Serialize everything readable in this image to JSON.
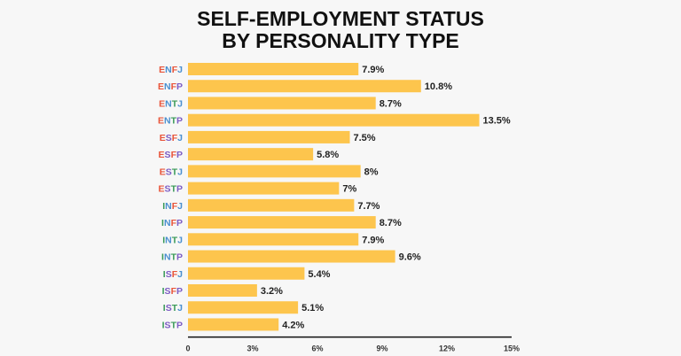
{
  "chart_data": {
    "type": "bar",
    "orientation": "horizontal",
    "title_lines": [
      "SELF-EMPLOYMENT STATUS",
      "BY PERSONALITY TYPE"
    ],
    "categories": [
      "ENFJ",
      "ENFP",
      "ENTJ",
      "ENTP",
      "ESFJ",
      "ESFP",
      "ESTJ",
      "ESTP",
      "INFJ",
      "INFP",
      "INTJ",
      "INTP",
      "ISFJ",
      "ISFP",
      "ISTJ",
      "ISTP"
    ],
    "values": [
      7.9,
      10.8,
      8.7,
      13.5,
      7.5,
      5.8,
      8,
      7,
      7.7,
      8.7,
      7.9,
      9.6,
      5.4,
      3.2,
      5.1,
      4.2
    ],
    "value_labels": [
      "7.9%",
      "10.8%",
      "8.7%",
      "13.5%",
      "7.5%",
      "5.8%",
      "8%",
      "7%",
      "7.7%",
      "8.7%",
      "7.9%",
      "9.6%",
      "5.4%",
      "3.2%",
      "5.1%",
      "4.2%"
    ],
    "xlim": [
      0,
      15
    ],
    "x_ticks": [
      0,
      3,
      6,
      9,
      12,
      15
    ],
    "x_tick_labels": [
      "0",
      "3%",
      "6%",
      "9%",
      "12%",
      "15%"
    ],
    "xlabel": "",
    "ylabel": "",
    "grid": false,
    "legend": "none",
    "colors": {
      "bar": "#fdc54d",
      "axis": "#111111",
      "letters": {
        "E": "#e8543a",
        "I": "#3a9a58",
        "N": "#4a8fcf",
        "S": "#7c5cc4",
        "F": "#e8543a",
        "T": "#3a9a58",
        "J": "#4a8fcf",
        "P": "#7c5cc4"
      }
    }
  }
}
